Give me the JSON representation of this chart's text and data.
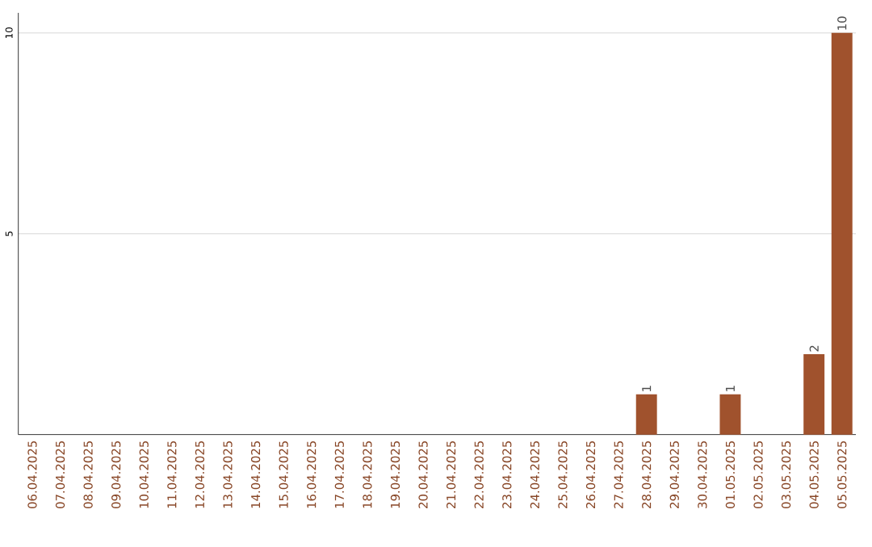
{
  "chart_data": {
    "type": "bar",
    "categories": [
      "06.04.2025",
      "07.04.2025",
      "08.04.2025",
      "09.04.2025",
      "10.04.2025",
      "11.04.2025",
      "12.04.2025",
      "13.04.2025",
      "14.04.2025",
      "15.04.2025",
      "16.04.2025",
      "17.04.2025",
      "18.04.2025",
      "19.04.2025",
      "20.04.2025",
      "21.04.2025",
      "22.04.2025",
      "23.04.2025",
      "24.04.2025",
      "25.04.2025",
      "26.04.2025",
      "27.04.2025",
      "28.04.2025",
      "29.04.2025",
      "30.04.2025",
      "01.05.2025",
      "02.05.2025",
      "03.05.2025",
      "04.05.2025",
      "05.05.2025"
    ],
    "values": [
      0,
      0,
      0,
      0,
      0,
      0,
      0,
      0,
      0,
      0,
      0,
      0,
      0,
      0,
      0,
      0,
      0,
      0,
      0,
      0,
      0,
      0,
      1,
      0,
      0,
      1,
      0,
      0,
      2,
      10
    ],
    "value_labels": [
      null,
      null,
      null,
      null,
      null,
      null,
      null,
      null,
      null,
      null,
      null,
      null,
      null,
      null,
      null,
      null,
      null,
      null,
      null,
      null,
      null,
      null,
      "1",
      null,
      null,
      "1",
      null,
      null,
      "2",
      "10"
    ],
    "color": "#a0522d",
    "ylim": [
      0,
      10.5
    ],
    "yticks": [
      5,
      10
    ],
    "grid": "y"
  }
}
